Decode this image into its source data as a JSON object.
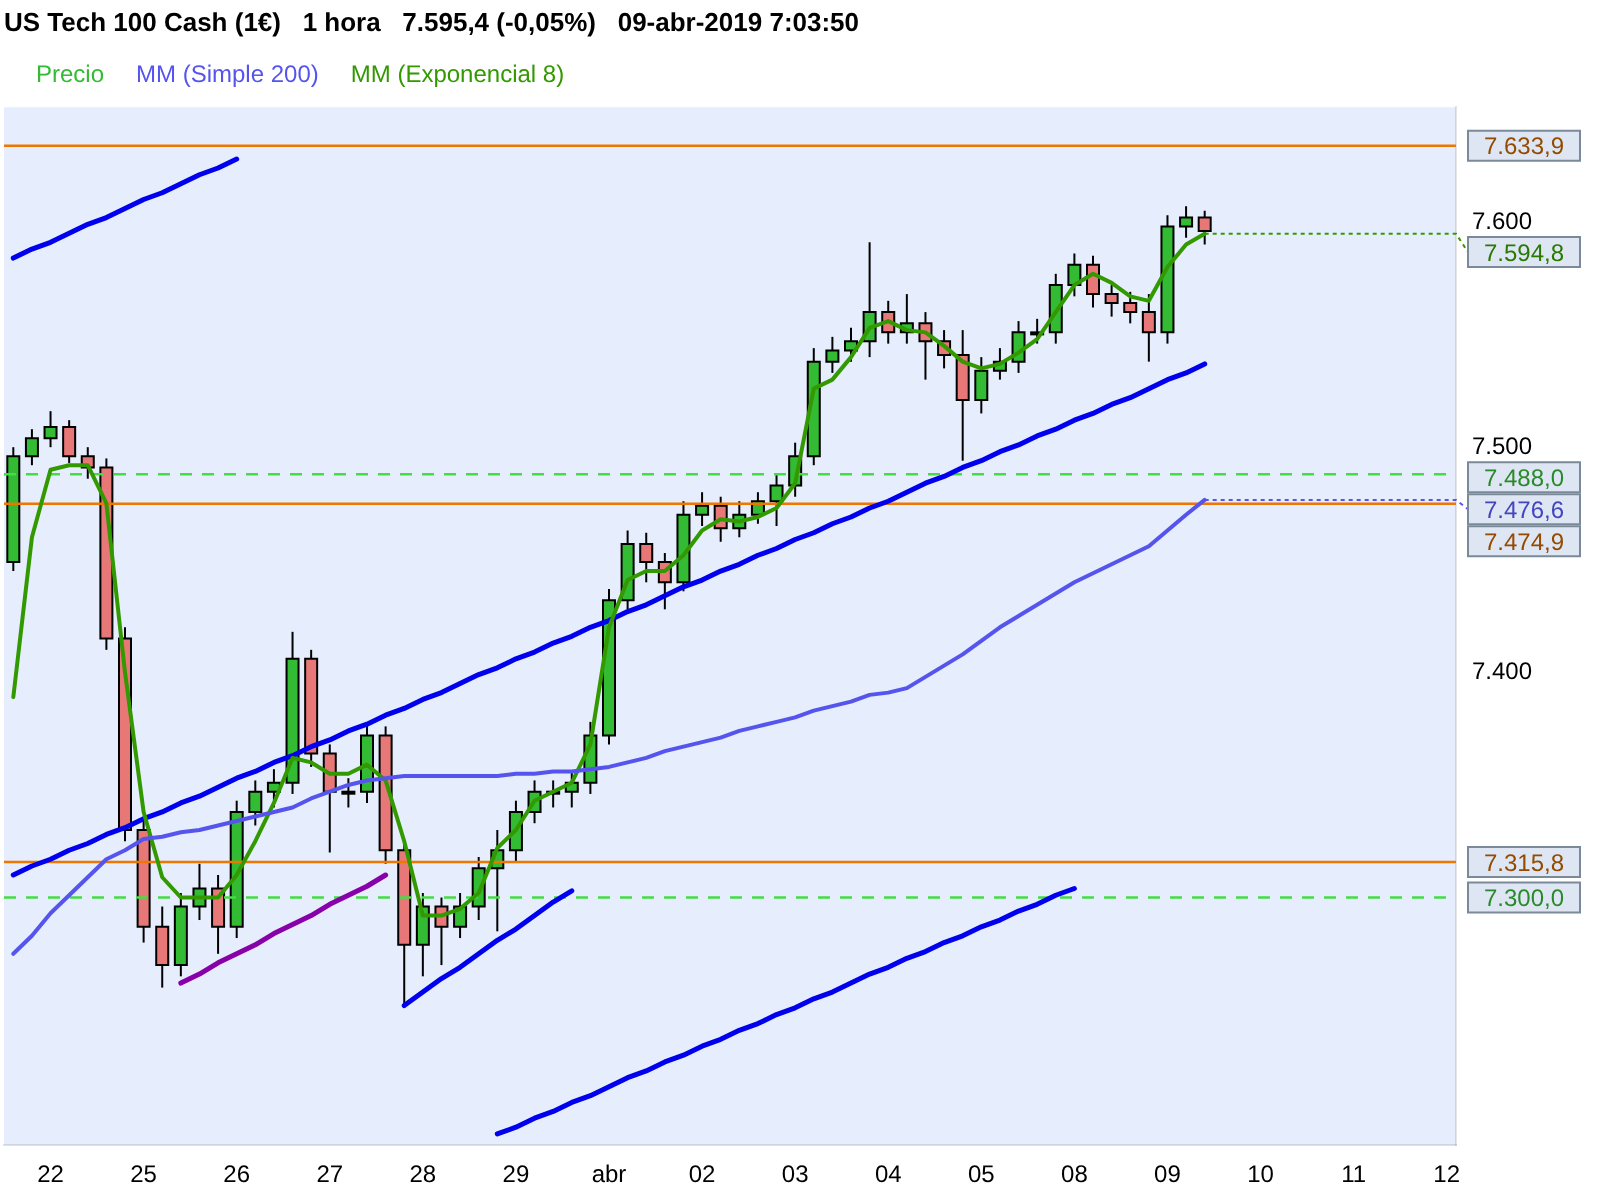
{
  "chart_data": {
    "type": "candlestick",
    "title": "US Tech 100 Cash (1€)   1 hora   7.595,4 (-0,05%)   09-abr-2019 7:03:50",
    "categories": [
      null,
      null,
      "22",
      null,
      null,
      null,
      null,
      "25",
      null,
      null,
      null,
      null,
      "26",
      null,
      null,
      null,
      null,
      "27",
      null,
      null,
      null,
      null,
      "28",
      null,
      null,
      null,
      null,
      "29",
      null,
      null,
      null,
      null,
      "abr",
      null,
      null,
      null,
      null,
      "02",
      null,
      null,
      null,
      null,
      "03",
      null,
      null,
      null,
      null,
      "04",
      null,
      null,
      null,
      null,
      "05",
      null,
      null,
      null,
      null,
      "08",
      null,
      null,
      null,
      null,
      "09",
      null,
      null,
      null,
      null,
      "10",
      null,
      null,
      null,
      null,
      "11",
      null,
      null,
      null,
      null,
      "12"
    ],
    "ylim": [
      7190,
      7651
    ],
    "yticks": [
      {
        "value": 7400,
        "label": "7.400"
      },
      {
        "value": 7500,
        "label": "7.500"
      },
      {
        "value": 7600,
        "label": "7.600"
      }
    ],
    "grid": false,
    "legend": "top left",
    "series": [
      {
        "name": "Precio",
        "color": "#000000",
        "colors": [
          "#33bb33",
          "#33bb33",
          "#33bb33",
          "#e87878",
          "#e87878",
          "#e87878",
          "#e87878",
          "#e87878",
          "#e87878",
          "#33bb33",
          "#33bb33",
          "#e87878",
          "#33bb33",
          "#33bb33",
          "#33bb33",
          "#33bb33",
          "#e87878",
          "#e87878",
          "#33bb33",
          "#33bb33",
          "#e87878",
          "#e87878",
          "#33bb33",
          "#e87878",
          "#33bb33",
          "#33bb33",
          "#33bb33",
          "#33bb33",
          "#33bb33",
          "#33bb33",
          "#33bb33",
          "#33bb33",
          "#33bb33",
          "#33bb33",
          "#e87878",
          "#e87878",
          "#33bb33",
          "#33bb33",
          "#e87878",
          "#33bb33",
          "#33bb33",
          "#33bb33",
          "#33bb33",
          "#33bb33",
          "#33bb33",
          "#33bb33",
          "#33bb33",
          "#e87878",
          "#33bb33",
          "#e87878",
          "#e87878",
          "#e87878",
          "#33bb33",
          "#33bb33",
          "#33bb33",
          "#33bb33",
          "#33bb33",
          "#33bb33",
          "#e87878",
          "#e87878",
          "#e87878",
          "#e87878",
          "#33bb33",
          "#33bb33",
          "#e87878",
          null,
          null,
          null,
          null,
          null,
          null,
          null,
          null,
          null,
          null,
          null,
          null,
          null
        ],
        "ohlc": [
          [
            7449,
            7500,
            7445,
            7496
          ],
          [
            7496,
            7508,
            7492,
            7504
          ],
          [
            7504,
            7516,
            7500,
            7509
          ],
          [
            7509,
            7512,
            7493,
            7496
          ],
          [
            7496,
            7500,
            7486,
            7491
          ],
          [
            7491,
            7495,
            7410,
            7415
          ],
          [
            7415,
            7420,
            7325,
            7330
          ],
          [
            7330,
            7335,
            7280,
            7287
          ],
          [
            7287,
            7296,
            7260,
            7270
          ],
          [
            7270,
            7302,
            7265,
            7296
          ],
          [
            7296,
            7315,
            7290,
            7304
          ],
          [
            7304,
            7310,
            7275,
            7287
          ],
          [
            7287,
            7343,
            7282,
            7338
          ],
          [
            7338,
            7352,
            7332,
            7347
          ],
          [
            7347,
            7357,
            7340,
            7351
          ],
          [
            7351,
            7418,
            7346,
            7406
          ],
          [
            7406,
            7410,
            7358,
            7364
          ],
          [
            7364,
            7368,
            7320,
            7347
          ],
          [
            7347,
            7353,
            7340,
            7347
          ],
          [
            7347,
            7378,
            7342,
            7372
          ],
          [
            7372,
            7376,
            7315,
            7321
          ],
          [
            7321,
            7325,
            7251,
            7279
          ],
          [
            7279,
            7302,
            7265,
            7296
          ],
          [
            7296,
            7300,
            7270,
            7287
          ],
          [
            7287,
            7302,
            7282,
            7296
          ],
          [
            7296,
            7318,
            7290,
            7313
          ],
          [
            7313,
            7330,
            7285,
            7321
          ],
          [
            7321,
            7343,
            7316,
            7338
          ],
          [
            7338,
            7352,
            7333,
            7347
          ],
          [
            7347,
            7352,
            7340,
            7347
          ],
          [
            7347,
            7356,
            7340,
            7351
          ],
          [
            7351,
            7378,
            7346,
            7372
          ],
          [
            7372,
            7437,
            7368,
            7432
          ],
          [
            7432,
            7463,
            7428,
            7457
          ],
          [
            7457,
            7462,
            7440,
            7449
          ],
          [
            7449,
            7453,
            7428,
            7440
          ],
          [
            7440,
            7476,
            7436,
            7470
          ],
          [
            7470,
            7480,
            7465,
            7474
          ],
          [
            7474,
            7478,
            7458,
            7464
          ],
          [
            7464,
            7476,
            7460,
            7470
          ],
          [
            7470,
            7480,
            7466,
            7476
          ],
          [
            7476,
            7488,
            7465,
            7483
          ],
          [
            7483,
            7502,
            7478,
            7496
          ],
          [
            7496,
            7544,
            7492,
            7538
          ],
          [
            7538,
            7549,
            7533,
            7543
          ],
          [
            7543,
            7553,
            7538,
            7547
          ],
          [
            7547,
            7591,
            7540,
            7560
          ],
          [
            7560,
            7565,
            7546,
            7551
          ],
          [
            7551,
            7568,
            7546,
            7555
          ],
          [
            7555,
            7560,
            7530,
            7547
          ],
          [
            7547,
            7552,
            7535,
            7541
          ],
          [
            7541,
            7552,
            7494,
            7521
          ],
          [
            7521,
            7540,
            7515,
            7534
          ],
          [
            7534,
            7544,
            7530,
            7538
          ],
          [
            7538,
            7556,
            7533,
            7551
          ],
          [
            7551,
            7557,
            7546,
            7551
          ],
          [
            7551,
            7577,
            7546,
            7572
          ],
          [
            7572,
            7586,
            7567,
            7581
          ],
          [
            7581,
            7585,
            7562,
            7568
          ],
          [
            7568,
            7572,
            7558,
            7564
          ],
          [
            7564,
            7569,
            7555,
            7560
          ],
          [
            7560,
            7568,
            7538,
            7551
          ],
          [
            7551,
            7603,
            7546,
            7598
          ],
          [
            7598,
            7607,
            7593,
            7602
          ],
          [
            7602,
            7605,
            7590,
            7596
          ],
          null,
          null,
          null,
          null,
          null,
          null,
          null,
          null,
          null,
          null,
          null,
          null,
          null
        ]
      },
      {
        "type": "line",
        "name": "MM (Simple 200)",
        "color": "#5555ee",
        "values": [
          7275,
          7283,
          7293,
          7301,
          7309,
          7317,
          7321,
          7326,
          7327,
          7329,
          7330,
          7332,
          7334,
          7336,
          7338,
          7340,
          7344,
          7347,
          7350,
          7352,
          7353,
          7354,
          7354,
          7354,
          7354,
          7354,
          7354,
          7355,
          7355,
          7356,
          7356,
          7357,
          7358,
          7360,
          7362,
          7365,
          7367,
          7369,
          7371,
          7374,
          7376,
          7378,
          7380,
          7383,
          7385,
          7387,
          7390,
          7391,
          7393,
          7398,
          7403,
          7408,
          7414,
          7420,
          7425,
          7430,
          7435,
          7440,
          7444,
          7448,
          7452,
          7456,
          7463,
          7470,
          7476.6,
          null,
          null,
          null,
          null,
          null,
          null,
          null,
          null,
          null,
          null,
          null,
          null,
          null
        ],
        "value_labels": [
          null,
          null,
          null,
          null,
          null,
          null,
          null,
          null,
          null,
          null,
          null,
          null,
          null,
          null,
          null,
          null,
          null,
          null,
          null,
          null,
          null,
          null,
          null,
          null,
          null,
          null,
          null,
          null,
          null,
          null,
          null,
          null,
          null,
          null,
          null,
          null,
          null,
          null,
          null,
          null,
          null,
          null,
          null,
          null,
          null,
          null,
          null,
          null,
          null,
          null,
          null,
          null,
          null,
          null,
          null,
          null,
          null,
          null,
          null,
          null,
          null,
          null,
          null,
          null,
          "7.476,6",
          null,
          null,
          null,
          null,
          null,
          null,
          null,
          null,
          null,
          null,
          null,
          null,
          null
        ]
      },
      {
        "type": "line",
        "name": "MM (Exponencial 8)",
        "color": "#339900",
        "values": [
          7389,
          7460,
          7490,
          7492,
          7492,
          7475,
          7400,
          7338,
          7309,
          7300,
          7300,
          7300,
          7310,
          7325,
          7342,
          7362,
          7360,
          7355,
          7355,
          7359,
          7352,
          7325,
          7292,
          7292,
          7295,
          7302,
          7322,
          7330,
          7343,
          7347,
          7351,
          7368,
          7420,
          7441,
          7445,
          7445,
          7452,
          7463,
          7468,
          7467,
          7469,
          7473,
          7484,
          7526,
          7530,
          7540,
          7553,
          7556,
          7552,
          7551,
          7545,
          7538,
          7535,
          7537,
          7542,
          7548,
          7560,
          7572,
          7577,
          7573,
          7567,
          7565,
          7580,
          7590,
          7594.8,
          null,
          null,
          null,
          null,
          null,
          null,
          null,
          null,
          null,
          null,
          null,
          null,
          null
        ],
        "value_labels": [
          null,
          null,
          null,
          null,
          null,
          null,
          null,
          null,
          null,
          null,
          null,
          null,
          null,
          null,
          null,
          null,
          null,
          null,
          null,
          null,
          null,
          null,
          null,
          null,
          null,
          null,
          null,
          null,
          null,
          null,
          null,
          null,
          null,
          null,
          null,
          null,
          null,
          null,
          null,
          null,
          null,
          null,
          null,
          null,
          null,
          null,
          null,
          null,
          null,
          null,
          null,
          null,
          null,
          null,
          null,
          null,
          null,
          null,
          null,
          null,
          null,
          null,
          null,
          null,
          "7.594,8",
          null,
          null,
          null,
          null,
          null,
          null,
          null,
          null,
          null,
          null,
          null,
          null,
          null
        ]
      },
      {
        "type": "line",
        "color": "#0000ee",
        "values": [
          7584,
          7588,
          7591,
          7595,
          7599,
          7602,
          7606,
          7610,
          7613,
          7617,
          7621,
          7624,
          7628,
          null,
          null,
          null,
          null,
          null,
          null,
          null,
          null,
          null,
          null,
          null,
          null,
          null,
          null,
          null,
          null,
          null,
          null,
          null,
          null,
          null,
          null,
          null,
          null,
          null,
          null,
          null,
          null,
          null,
          null,
          null,
          null,
          null,
          null,
          null,
          null,
          null,
          null,
          null,
          null,
          null,
          null,
          null,
          null,
          null,
          null,
          null,
          null,
          null,
          null,
          null,
          null,
          null,
          null,
          null,
          null,
          null,
          null,
          null,
          null,
          null,
          null,
          null,
          null,
          null
        ]
      },
      {
        "type": "line",
        "color": "#0000ee",
        "values": [
          7310,
          7314,
          7317,
          7321,
          7324,
          7328,
          7331,
          7335,
          7338,
          7342,
          7345,
          7349,
          7353,
          7356,
          7360,
          7363,
          7367,
          7370,
          7374,
          7377,
          7381,
          7384,
          7388,
          7391,
          7395,
          7399,
          7402,
          7406,
          7409,
          7413,
          7416,
          7420,
          7423,
          7427,
          7430,
          7434,
          7438,
          7441,
          7445,
          7448,
          7452,
          7455,
          7459,
          7462,
          7466,
          7469,
          7473,
          7476,
          7480,
          7484,
          7487,
          7491,
          7494,
          7498,
          7501,
          7505,
          7508,
          7512,
          7515,
          7519,
          7522,
          7526,
          7530,
          7533,
          7537,
          null,
          null,
          null,
          null,
          null,
          null,
          null,
          null,
          null,
          null,
          null,
          null,
          null
        ]
      },
      {
        "type": "line",
        "color": "#8800aa",
        "values": [
          null,
          null,
          null,
          null,
          null,
          null,
          null,
          null,
          null,
          7262,
          7266,
          7271,
          7275,
          7279,
          7284,
          7288,
          7292,
          7297,
          7301,
          7305,
          7310,
          null,
          null,
          null,
          null,
          null,
          null,
          null,
          null,
          null,
          null,
          null,
          null,
          null,
          null,
          null,
          null,
          null,
          null,
          null,
          null,
          null,
          null,
          null,
          null,
          null,
          null,
          null,
          null,
          null,
          null,
          null,
          null,
          null,
          null,
          null,
          null,
          null,
          null,
          null,
          null,
          null,
          null,
          null,
          null,
          null,
          null,
          null,
          null,
          null,
          null,
          null,
          null,
          null,
          null,
          null,
          null,
          null
        ]
      },
      {
        "type": "line",
        "color": "#0000ee",
        "values": [
          null,
          null,
          null,
          null,
          null,
          null,
          null,
          null,
          null,
          null,
          null,
          null,
          null,
          null,
          null,
          null,
          null,
          null,
          null,
          null,
          null,
          7252,
          7258,
          7264,
          7269,
          7275,
          7281,
          7286,
          7292,
          7298,
          7303,
          null,
          null,
          null,
          null,
          null,
          null,
          null,
          null,
          null,
          null,
          null,
          null,
          null,
          null,
          null,
          null,
          null,
          null,
          null,
          null,
          null,
          null,
          null,
          null,
          null,
          null,
          null,
          null,
          null,
          null,
          null,
          null,
          null,
          null,
          null,
          null,
          null,
          null,
          null,
          null,
          null,
          null,
          null,
          null,
          null,
          null,
          null
        ]
      },
      {
        "type": "line",
        "color": "#0000ee",
        "values": [
          null,
          null,
          null,
          null,
          null,
          null,
          null,
          null,
          null,
          null,
          null,
          null,
          null,
          null,
          null,
          null,
          null,
          null,
          null,
          null,
          null,
          null,
          null,
          null,
          null,
          null,
          7195,
          7198,
          7202,
          7205,
          7209,
          7212,
          7216,
          7220,
          7223,
          7227,
          7230,
          7234,
          7237,
          7241,
          7244,
          7248,
          7251,
          7255,
          7258,
          7262,
          7266,
          7269,
          7273,
          7276,
          7280,
          7283,
          7287,
          7290,
          7294,
          7297,
          7301,
          7304,
          null,
          null,
          null,
          null,
          null,
          null,
          null,
          null,
          null,
          null,
          null,
          null,
          null,
          null,
          null,
          null,
          null,
          null,
          null,
          null
        ]
      }
    ],
    "ref_lines": [
      {
        "axis": "y",
        "value": 7633.9,
        "label": "7.633,9",
        "color": "#ee7700"
      },
      {
        "axis": "y",
        "value": 7488.0,
        "label": "7.488,0",
        "color": "#44dd44",
        "line_style": "dashed"
      },
      {
        "axis": "y",
        "value": 7474.9,
        "label": "7.474,9",
        "color": "#ee7700"
      },
      {
        "axis": "y",
        "value": 7315.8,
        "label": "7.315,8",
        "color": "#ee7700"
      },
      {
        "axis": "y",
        "value": 7300.0,
        "label": "7.300,0",
        "color": "#44dd44",
        "line_style": "dashed"
      }
    ]
  }
}
